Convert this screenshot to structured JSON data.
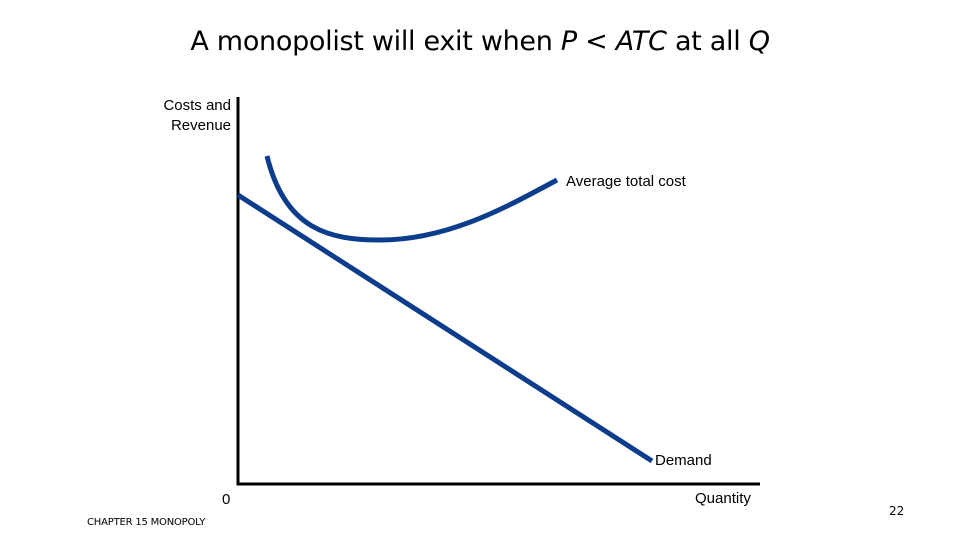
{
  "title": {
    "prefix": "A monopolist will exit when ",
    "var_p": "P",
    "middle": " < ",
    "var_atc": "ATC",
    "suffix": " at all ",
    "var_q": "Q"
  },
  "axes": {
    "y_label_line1": "Costs and",
    "y_label_line2": "Revenue",
    "x_label": "Quantity",
    "origin": "0"
  },
  "curves": {
    "atc_label": "Average total cost",
    "demand_label": "Demand"
  },
  "colors": {
    "curve": "#0b3d8c",
    "axis": "#000000"
  },
  "footer": "CHAPTER 15 MONOPOLY",
  "page_number": "22"
}
